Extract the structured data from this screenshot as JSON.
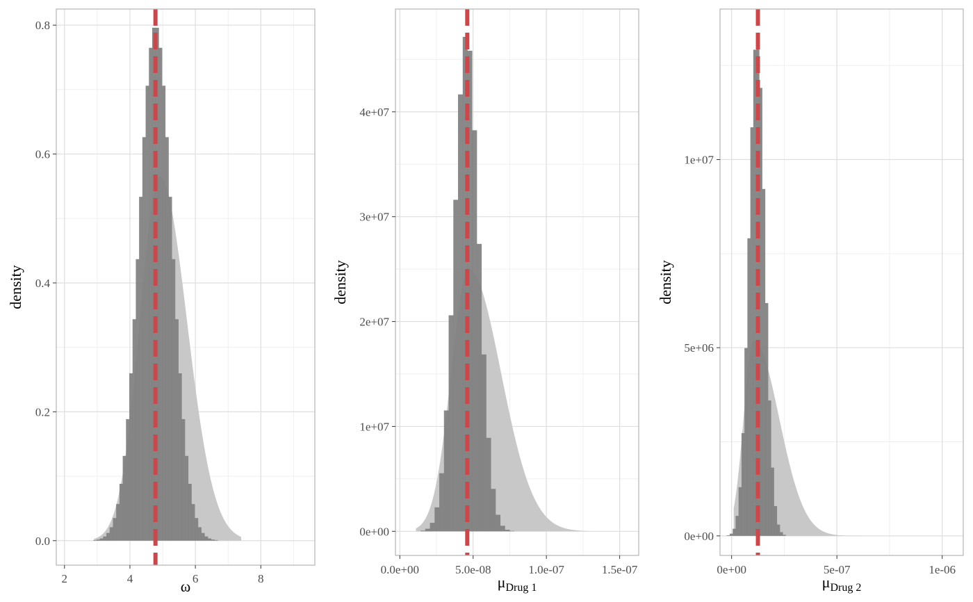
{
  "colors": {
    "histogram": "#7f7f7f",
    "density": "#c8c8c8",
    "reference_line": "#c9484c",
    "grid_major": "#dedede",
    "grid_minor": "#efefef",
    "panel_border": "#b3b3b3"
  },
  "chart_data": [
    {
      "type": "histogram",
      "name": "omega",
      "xlabel": "ω",
      "xlabel_sub": "",
      "ylabel": "density",
      "xlim": [
        1.75,
        9.65
      ],
      "ylim": [
        -0.038,
        0.825
      ],
      "x_ticks": [
        2,
        4,
        6,
        8
      ],
      "x_tick_labels": [
        "2",
        "4",
        "6",
        "8"
      ],
      "y_ticks": [
        0,
        0.2,
        0.4,
        0.6,
        0.8
      ],
      "y_tick_labels": [
        "0.0",
        "0.2",
        "0.4",
        "0.6",
        "0.8"
      ],
      "reference_x": 4.78,
      "dist_mean": 4.78,
      "dist_sd": 0.5,
      "dist_peak": 0.8,
      "density_mode": 4.92,
      "density_sd_left": 0.62,
      "density_sd_right": 0.82,
      "density_peak": 0.565,
      "range": [
        2.9,
        7.4
      ],
      "bin_width": 0.1
    },
    {
      "type": "histogram",
      "name": "mu-drug-1",
      "xlabel": "μ",
      "xlabel_sub": "Drug 1",
      "ylabel": "density",
      "xlim": [
        -3e-09,
        1.63e-07
      ],
      "ylim": [
        -2300000.0,
        49800000.0
      ],
      "x_ticks": [
        0,
        5e-08,
        1e-07,
        1.5e-07
      ],
      "x_tick_labels": [
        "0.0e+00",
        "5.0e-08",
        "1.0e-07",
        "1.5e-07"
      ],
      "y_ticks": [
        0,
        10000000.0,
        20000000.0,
        30000000.0,
        40000000.0
      ],
      "y_tick_labels": [
        "0e+00",
        "1e+07",
        "2e+07",
        "3e+07",
        "4e+07"
      ],
      "reference_x": 4.6e-08,
      "dist_mean": 4.55e-08,
      "dist_sd": 8.2e-09,
      "dist_peak": 47500000.0,
      "density_mode": 4.7e-08,
      "density_sd_left": 1.2e-08,
      "density_sd_right": 2.2e-08,
      "density_peak": 25000000.0,
      "range": [
        1.1e-08,
        1.3e-07
      ],
      "bin_width": 3.2e-09
    },
    {
      "type": "histogram",
      "name": "mu-drug-2",
      "xlabel": "μ",
      "xlabel_sub": "Drug 2",
      "ylabel": "density",
      "xlim": [
        -5.5e-08,
        1.1e-06
      ],
      "ylim": [
        -520000.0,
        14000000.0
      ],
      "x_ticks": [
        0,
        5e-07,
        1e-06
      ],
      "x_tick_labels": [
        "0e+00",
        "5e-07",
        "1e-06"
      ],
      "y_ticks": [
        0,
        5000000.0,
        10000000.0
      ],
      "y_tick_labels": [
        "0e+00",
        "5e+06",
        "1e+07"
      ],
      "reference_x": 1.25e-07,
      "dist_mean": 1.2e-07,
      "dist_sd": 3.7e-08,
      "dist_peak": 13400000.0,
      "density_mode": 1.05e-07,
      "density_sd_left": 4.8e-08,
      "density_sd_right": 1.2e-07,
      "density_peak": 5200000.0,
      "range": [
        1e-08,
        6.5e-07
      ],
      "bin_width": 1.4e-08
    }
  ]
}
